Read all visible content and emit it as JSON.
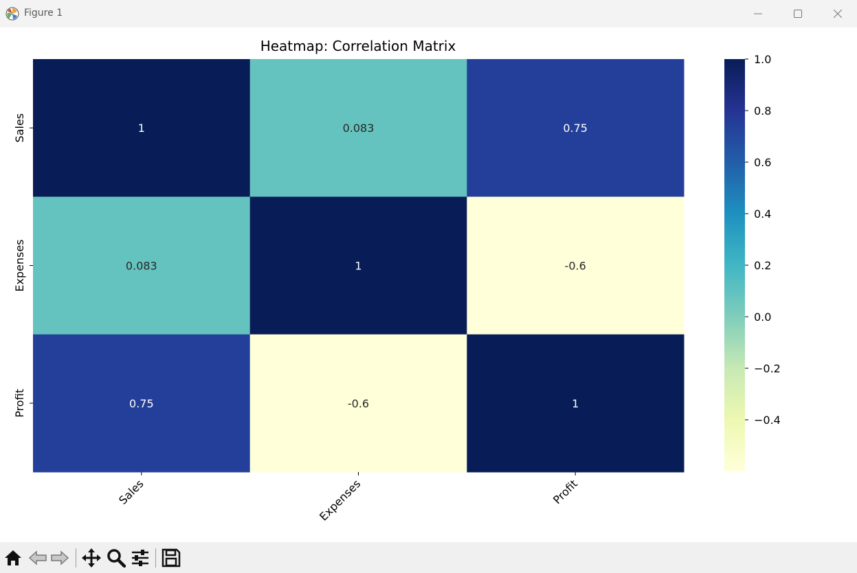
{
  "window": {
    "title": "Figure 1",
    "icon": "matplotlib-logo-icon"
  },
  "toolbar": {
    "buttons": [
      "home-icon",
      "back-arrow-icon",
      "forward-arrow-icon",
      "pan-move-icon",
      "zoom-magnifier-icon",
      "configure-subplots-icon",
      "save-floppy-icon"
    ]
  },
  "chart_data": {
    "type": "heatmap",
    "title": "Heatmap: Correlation Matrix",
    "x_labels": [
      "Sales",
      "Expenses",
      "Profit"
    ],
    "y_labels": [
      "Sales",
      "Expenses",
      "Profit"
    ],
    "values": [
      [
        1,
        0.083,
        0.75
      ],
      [
        0.083,
        1,
        -0.6
      ],
      [
        0.75,
        -0.6,
        1
      ]
    ],
    "annotations": [
      [
        "1",
        "0.083",
        "0.75"
      ],
      [
        "0.083",
        "1",
        "-0.6"
      ],
      [
        "0.75",
        "-0.6",
        "1"
      ]
    ],
    "colormap": "YlGnBu",
    "colorbar": {
      "range": [
        -0.6,
        1.0
      ],
      "ticks": [
        1.0,
        0.8,
        0.6,
        0.4,
        0.2,
        0.0,
        -0.2,
        -0.4
      ],
      "tick_labels": [
        "1.0",
        "0.8",
        "0.6",
        "0.4",
        "0.2",
        "0.0",
        "−0.2",
        "−0.4"
      ]
    },
    "colors": {
      "dark_text": "#262626",
      "light_text": "#ffffff"
    }
  }
}
